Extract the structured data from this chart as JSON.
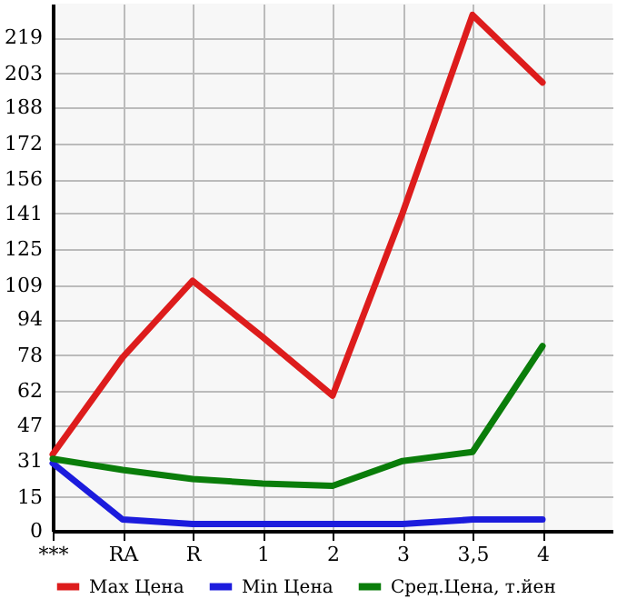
{
  "chart_data": {
    "type": "line",
    "categories": [
      "***",
      "RA",
      "R",
      "1",
      "2",
      "3",
      "3,5",
      "4"
    ],
    "series": [
      {
        "name": "Max Цена",
        "color": "#dd1c1c",
        "values": [
          34,
          77,
          111,
          86,
          60,
          141,
          229,
          199
        ]
      },
      {
        "name": "Min Цена",
        "color": "#1c1cdd",
        "values": [
          30,
          5,
          3,
          3,
          3,
          3,
          5,
          5
        ]
      },
      {
        "name": "Сред.Цена, т.йен",
        "color": "#0a7d0a",
        "values": [
          32,
          27,
          23,
          21,
          20,
          31,
          35,
          82
        ]
      }
    ],
    "ylim": [
      0,
      234
    ],
    "yticks": [
      0,
      15,
      31,
      47,
      62,
      78,
      94,
      109,
      125,
      141,
      156,
      172,
      188,
      203,
      219
    ],
    "grid": true,
    "legend": "bottom",
    "marker": "none",
    "line_style": "solid"
  }
}
